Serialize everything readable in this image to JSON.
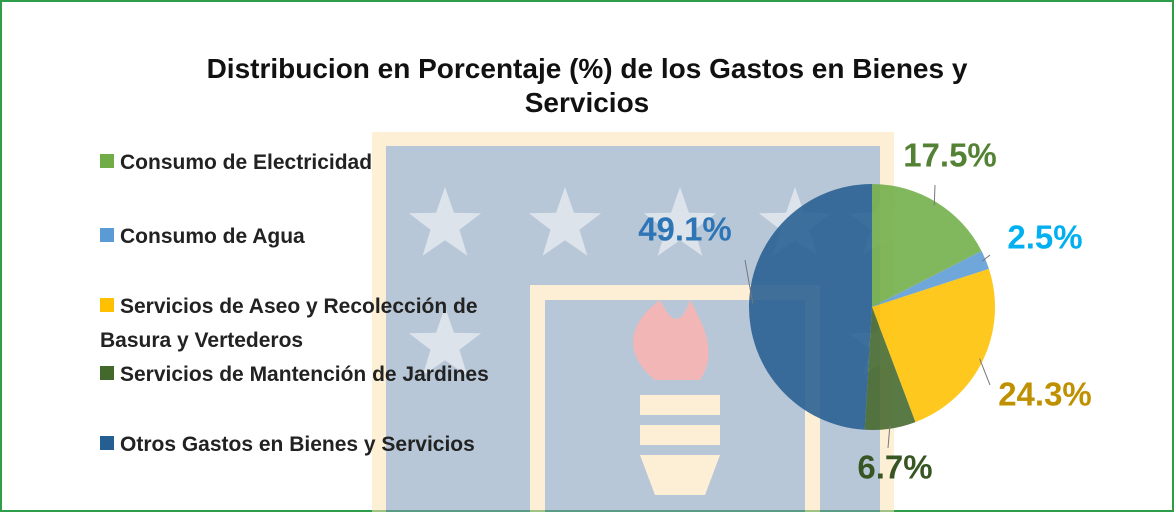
{
  "chart_data": {
    "type": "pie",
    "title": "Distribucion en Porcentaje (%) de los Gastos en Bienes y Servicios",
    "categories": [
      "Consumo de Electricidad",
      "Consumo de Agua",
      "Servicios de Aseo y Recolección de Basura y Vertederos",
      "Servicios de Mantención de Jardines",
      "Otros Gastos en Bienes y Servicios"
    ],
    "values": [
      17.5,
      2.5,
      24.3,
      6.7,
      49.1
    ],
    "value_labels": [
      "17.5%",
      "2.5%",
      "24.3%",
      "6.7%",
      "49.1%"
    ],
    "colors": [
      "#70ad47",
      "#5b9bd5",
      "#ffc000",
      "#43682b",
      "#255e91"
    ],
    "label_colors": [
      "#548235",
      "#00b0f0",
      "#bf9000",
      "#375623",
      "#2e75b6"
    ],
    "legend": "left"
  }
}
